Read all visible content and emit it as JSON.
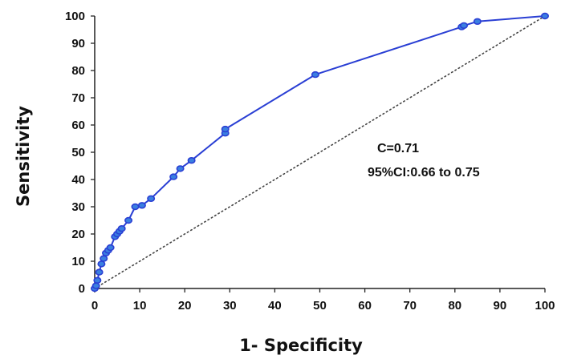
{
  "chart_data": {
    "type": "line",
    "xlabel": "1- Specificity",
    "ylabel": "Sensitivity",
    "xlim": [
      0,
      100
    ],
    "ylim": [
      0,
      100
    ],
    "x_ticks": [
      0,
      10,
      20,
      30,
      40,
      50,
      60,
      70,
      80,
      90,
      100
    ],
    "y_ticks": [
      0,
      10,
      20,
      30,
      40,
      50,
      60,
      70,
      80,
      90,
      100
    ],
    "grid": false,
    "legend": "none",
    "annotations": [
      "C=0.71",
      "95%CI:0.66 to 0.75"
    ],
    "reference_line": {
      "style": "dotted",
      "x": [
        0,
        100
      ],
      "y": [
        0,
        100
      ]
    },
    "series": [
      {
        "color": "#2a3fd4",
        "marker_color": "#3a7fe0",
        "x": [
          0,
          0.3,
          0.6,
          1.0,
          1.5,
          2.0,
          2.5,
          3.0,
          3.5,
          4.5,
          5.0,
          5.5,
          6.0,
          7.5,
          9.0,
          10.5,
          12.5,
          17.5,
          19.0,
          21.5,
          29.0,
          29.0,
          49.0,
          81.5,
          82.0,
          85.0,
          100
        ],
        "y": [
          0,
          1,
          3,
          6,
          9,
          11,
          13,
          14,
          15,
          19,
          20,
          21,
          22,
          25,
          30,
          30.5,
          33,
          41,
          44,
          47,
          57,
          58.5,
          78.5,
          96,
          96.5,
          98,
          100
        ]
      }
    ]
  }
}
